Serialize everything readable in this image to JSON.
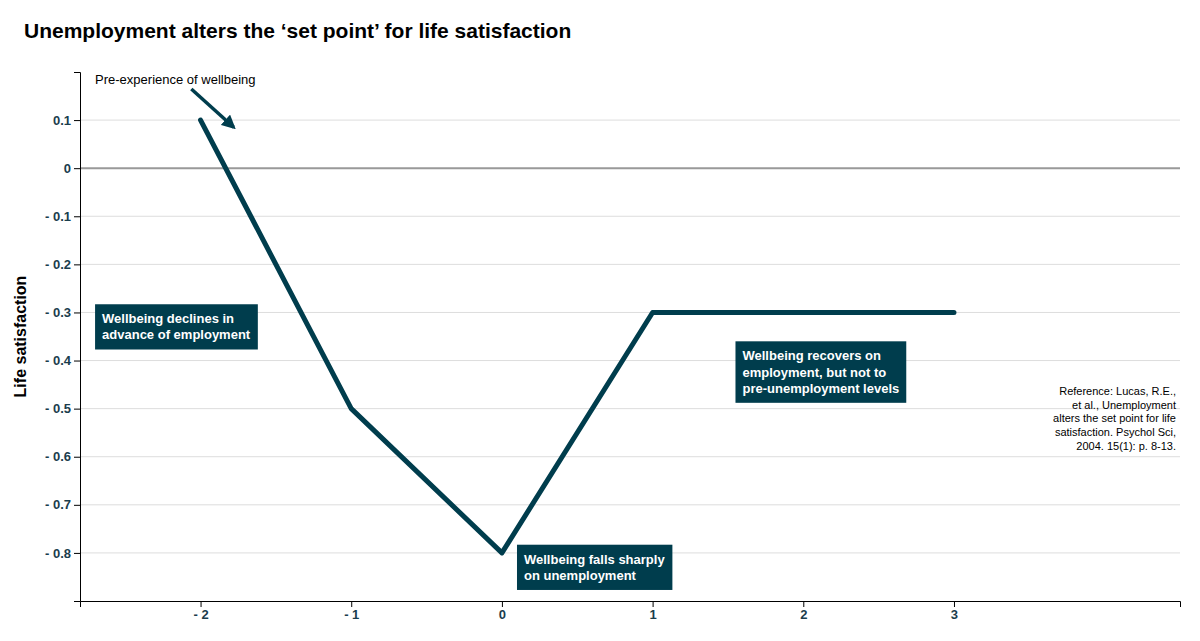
{
  "chart_data": {
    "type": "line",
    "title": "Unemployment alters the ‘set point’ for life satisfaction",
    "ylabel": "Life satisfaction",
    "x": [
      -2,
      -1,
      0,
      1,
      3
    ],
    "values": [
      0.1,
      -0.5,
      -0.8,
      -0.3,
      -0.3
    ],
    "color": "#003d4d",
    "xlim": [
      -2.8,
      4.5
    ],
    "xticks": [
      {
        "value": -2,
        "label": "- 2"
      },
      {
        "value": -1,
        "label": "- 1"
      },
      0,
      1,
      2,
      3
    ],
    "ylim": [
      -0.9,
      0.2
    ],
    "yticks": [
      0.1,
      0,
      {
        "value": -0.1,
        "label": "- 0.1"
      },
      {
        "value": -0.2,
        "label": "- 0.2"
      },
      {
        "value": -0.3,
        "label": "- 0.3"
      },
      {
        "value": -0.4,
        "label": "- 0.4"
      },
      {
        "value": -0.5,
        "label": "- 0.5"
      },
      {
        "value": -0.6,
        "label": "- 0.6"
      },
      {
        "value": -0.7,
        "label": "- 0.7"
      },
      {
        "value": -0.8,
        "label": "- 0.8"
      }
    ],
    "grid": true,
    "annotations": [
      "Pre-experience of wellbeing",
      "Wellbeing declines in\nadvance of employment",
      "Wellbeing falls sharply\non unemployment",
      "Wellbeing recovers on\nemployment, but not to\npre-unemployment levels",
      "Reference: Lucas, R.E.,\net al., Unemployment\nalters the set point for life\nsatisfaction. Psychol Sci,\n2004. 15(1): p. 8-13."
    ]
  }
}
